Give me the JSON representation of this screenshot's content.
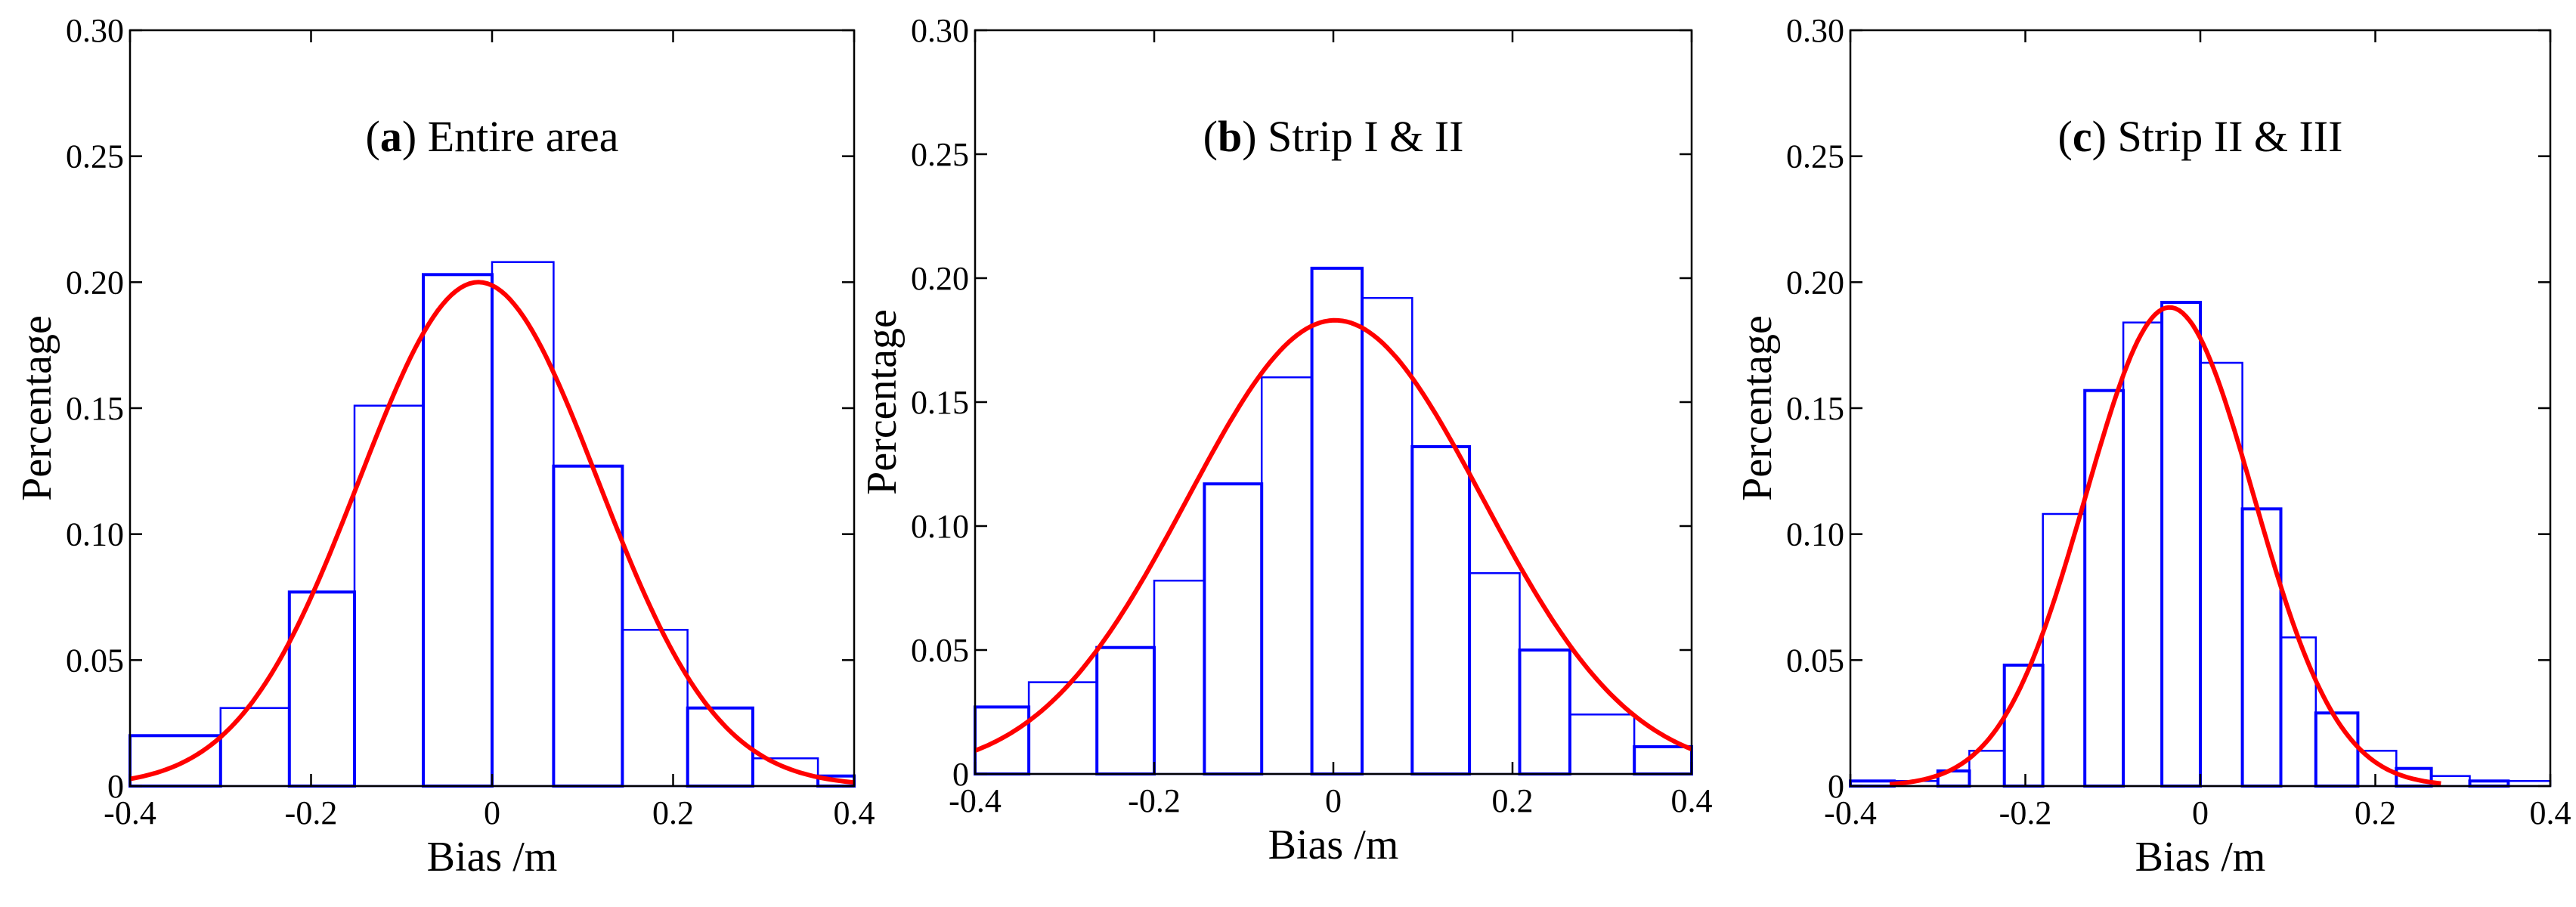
{
  "colors": {
    "bars": "#0000ff",
    "curve": "#ff0000",
    "axes": "#000000"
  },
  "chart_data": [
    {
      "type": "bar",
      "title_letter": "a",
      "title_text": " Entire area",
      "xlabel": "Bias /m",
      "ylabel": "Percentage",
      "xlim": [
        -0.4,
        0.4
      ],
      "ylim": [
        0,
        0.3
      ],
      "x_ticks": [
        -0.4,
        -0.2,
        0,
        0.2,
        0.4
      ],
      "x_tick_labels": [
        "-0.4",
        "-0.2",
        "0",
        "0.2",
        "0.4"
      ],
      "y_ticks": [
        0,
        0.05,
        0.1,
        0.15,
        0.2,
        0.25,
        0.3
      ],
      "y_tick_labels": [
        "0",
        "0.05",
        "0.10",
        "0.15",
        "0.20",
        "0.25",
        "0.30"
      ],
      "bin_edges": [
        -0.4,
        -0.3,
        -0.224,
        -0.152,
        -0.076,
        0,
        0.068,
        0.144,
        0.216,
        0.288,
        0.36,
        0.4
      ],
      "values": [
        0.02,
        0.031,
        0.077,
        0.151,
        0.203,
        0.208,
        0.127,
        0.062,
        0.031,
        0.011,
        0.004
      ],
      "curve": {
        "mean": -0.015,
        "sd": 0.132,
        "peak": 0.2,
        "x_range": [
          -0.4,
          0.4
        ]
      }
    },
    {
      "type": "bar",
      "title_letter": "b",
      "title_text": " Strip I & II",
      "xlabel": "Bias /m",
      "ylabel": "Percentage",
      "xlim": [
        -0.4,
        0.4
      ],
      "ylim": [
        0,
        0.3
      ],
      "x_ticks": [
        -0.4,
        -0.2,
        0,
        0.2,
        0.4
      ],
      "x_tick_labels": [
        "-0.4",
        "-0.2",
        "0",
        "0.2",
        "0.4"
      ],
      "y_ticks": [
        0,
        0.05,
        0.1,
        0.15,
        0.2,
        0.25,
        0.3
      ],
      "y_tick_labels": [
        "0",
        "0.05",
        "0.10",
        "0.15",
        "0.20",
        "0.25",
        "0.30"
      ],
      "bin_edges": [
        -0.4,
        -0.34,
        -0.264,
        -0.2,
        -0.144,
        -0.08,
        -0.024,
        0.032,
        0.088,
        0.152,
        0.208,
        0.264,
        0.336,
        0.4
      ],
      "values": [
        0.027,
        0.037,
        0.051,
        0.078,
        0.117,
        0.16,
        0.204,
        0.192,
        0.132,
        0.081,
        0.05,
        0.024,
        0.011
      ],
      "curve": {
        "mean": 0.002,
        "sd": 0.165,
        "peak": 0.183,
        "x_range": [
          -0.4,
          0.4
        ]
      }
    },
    {
      "type": "bar",
      "title_letter": "c",
      "title_text": " Strip II & III",
      "xlabel": "Bias /m",
      "ylabel": "Percentage",
      "xlim": [
        -0.4,
        0.4
      ],
      "ylim": [
        0,
        0.3
      ],
      "x_ticks": [
        -0.4,
        -0.2,
        0,
        0.2,
        0.4
      ],
      "x_tick_labels": [
        "-0.4",
        "-0.2",
        "0",
        "0.2",
        "0.4"
      ],
      "y_ticks": [
        0,
        0.05,
        0.1,
        0.15,
        0.2,
        0.25,
        0.3
      ],
      "y_tick_labels": [
        "0",
        "0.05",
        "0.10",
        "0.15",
        "0.20",
        "0.25",
        "0.30"
      ],
      "bin_edges": [
        -0.4,
        -0.35,
        -0.3,
        -0.264,
        -0.224,
        -0.18,
        -0.132,
        -0.088,
        -0.044,
        0,
        0.048,
        0.092,
        0.132,
        0.18,
        0.224,
        0.264,
        0.308,
        0.352,
        0.4
      ],
      "values": [
        0.002,
        0.002,
        0.006,
        0.014,
        0.048,
        0.108,
        0.157,
        0.184,
        0.192,
        0.168,
        0.11,
        0.059,
        0.029,
        0.014,
        0.007,
        0.004,
        0.002,
        0.002
      ],
      "curve": {
        "mean": -0.035,
        "sd": 0.096,
        "peak": 0.19,
        "x_range": [
          -0.355,
          0.275
        ]
      }
    }
  ]
}
